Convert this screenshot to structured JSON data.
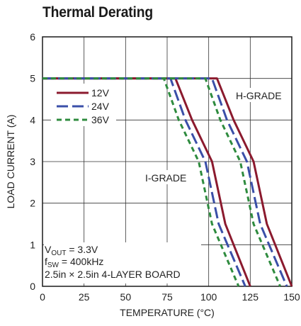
{
  "chart_data": {
    "type": "line",
    "title": "Thermal Derating",
    "xlabel": "TEMPERATURE (°C)",
    "ylabel": "LOAD CURRENT (A)",
    "xlim": [
      0,
      150
    ],
    "ylim": [
      0,
      6
    ],
    "xticks": [
      "0",
      "25",
      "50",
      "75",
      "100",
      "125",
      "150"
    ],
    "yticks": [
      "0",
      "1",
      "2",
      "3",
      "4",
      "5",
      "6"
    ],
    "grid": true,
    "legend_position": "top-left",
    "series": [
      {
        "name": "12V",
        "color": "#8b1a2e",
        "dash": "solid",
        "group": "I-GRADE",
        "x": [
          0,
          80,
          90,
          102,
          110,
          125
        ],
        "y": [
          5,
          5,
          4,
          3,
          1.5,
          0
        ]
      },
      {
        "name": "24V",
        "color": "#3a4fa8",
        "dash": "long-dash",
        "group": "I-GRADE",
        "x": [
          0,
          77,
          86,
          98,
          106,
          122
        ],
        "y": [
          5,
          5,
          4,
          3,
          1.5,
          0
        ]
      },
      {
        "name": "36V",
        "color": "#2e8b3e",
        "dash": "short-dash",
        "group": "I-GRADE",
        "x": [
          0,
          73,
          82,
          94,
          102,
          118
        ],
        "y": [
          5,
          5,
          4,
          3,
          1.5,
          0
        ]
      },
      {
        "name": "12V",
        "color": "#8b1a2e",
        "dash": "solid",
        "group": "H-GRADE",
        "x": [
          0,
          105,
          115,
          127,
          135,
          150
        ],
        "y": [
          5,
          5,
          4,
          3,
          1.5,
          0
        ]
      },
      {
        "name": "24V",
        "color": "#3a4fa8",
        "dash": "long-dash",
        "group": "H-GRADE",
        "x": [
          0,
          102,
          111,
          123,
          131,
          147
        ],
        "y": [
          5,
          5,
          4,
          3,
          1.5,
          0
        ]
      },
      {
        "name": "36V",
        "color": "#2e8b3e",
        "dash": "short-dash",
        "group": "H-GRADE",
        "x": [
          0,
          98,
          107,
          119,
          127,
          143
        ],
        "y": [
          5,
          5,
          4,
          3,
          1.5,
          0
        ]
      }
    ],
    "legend": [
      {
        "label": "12V",
        "color": "#8b1a2e",
        "dash": "solid"
      },
      {
        "label": "24V",
        "color": "#3a4fa8",
        "dash": "long-dash"
      },
      {
        "label": "36V",
        "color": "#2e8b3e",
        "dash": "short-dash"
      }
    ],
    "annotations": {
      "i_grade": "I-GRADE",
      "h_grade": "H-GRADE",
      "conditions": {
        "vout_main": "V",
        "vout_sub": "OUT",
        "vout_rest": " = 3.3V",
        "fsw_main": "f",
        "fsw_sub": "SW",
        "fsw_rest": " = 400kHz",
        "board": "2.5in × 2.5in 4-LAYER BOARD"
      }
    }
  }
}
